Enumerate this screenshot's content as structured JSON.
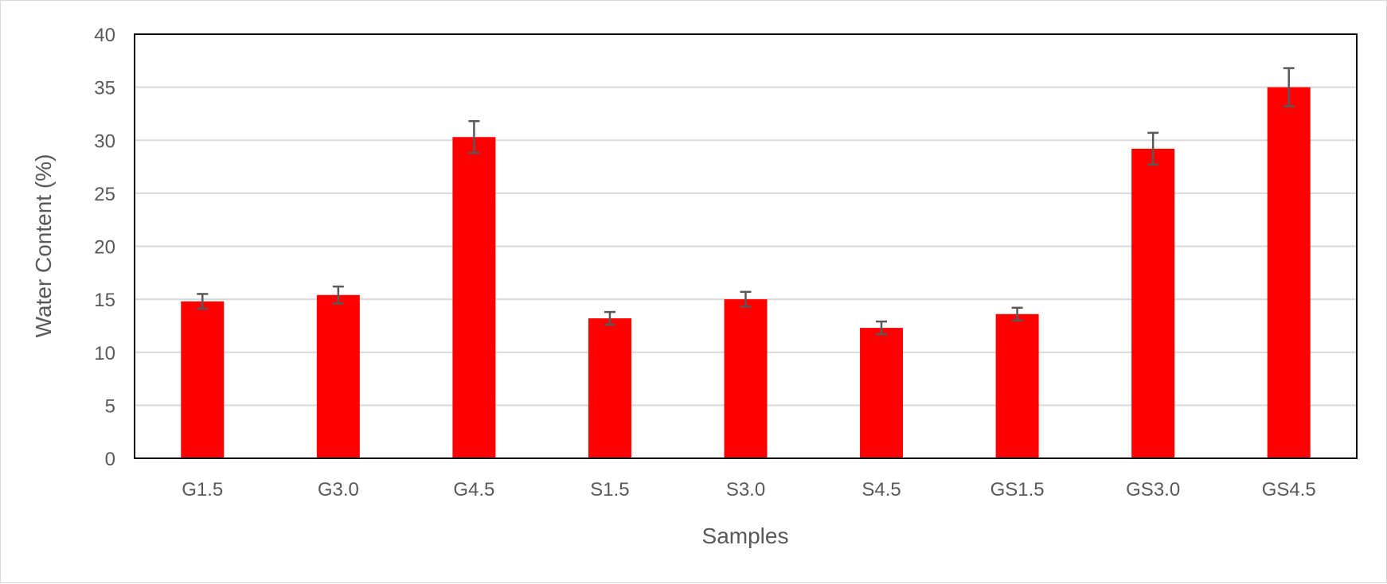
{
  "chart_data": {
    "type": "bar",
    "title": "",
    "xlabel": "Samples",
    "ylabel": "Water Content (%)",
    "ylim": [
      0,
      40
    ],
    "y_ticks": [
      0,
      5,
      10,
      15,
      20,
      25,
      30,
      35,
      40
    ],
    "grid": true,
    "legend": "none",
    "bar_color": "#ff0000",
    "error_bar_color": "#595959",
    "categories": [
      "G1.5",
      "G3.0",
      "G4.5",
      "S1.5",
      "S3.0",
      "S4.5",
      "GS1.5",
      "GS3.0",
      "GS4.5"
    ],
    "values": [
      14.8,
      15.4,
      30.3,
      13.2,
      15.0,
      12.3,
      13.6,
      29.2,
      35.0
    ],
    "errors": [
      0.7,
      0.8,
      1.5,
      0.6,
      0.7,
      0.6,
      0.6,
      1.5,
      1.8
    ]
  }
}
